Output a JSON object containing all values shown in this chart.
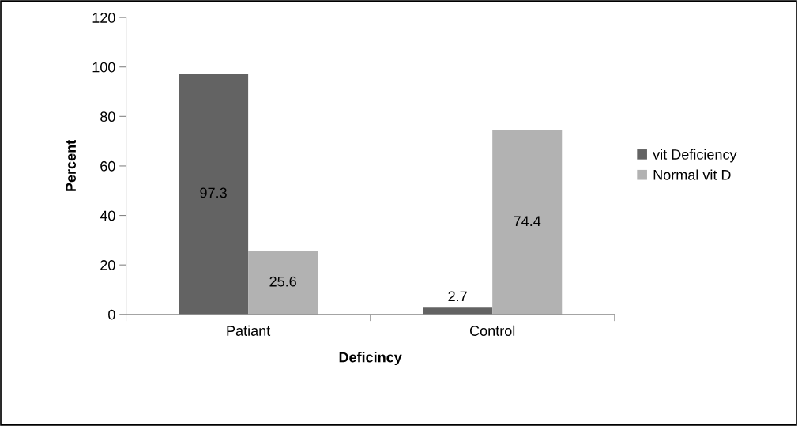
{
  "chart_data": {
    "type": "bar",
    "xlabel": "Deficincy",
    "ylabel": "Percent",
    "categories": [
      "Patiant",
      "Control"
    ],
    "series": [
      {
        "name": "vit Deficiency",
        "color": "#636363",
        "values": [
          97.3,
          2.7
        ]
      },
      {
        "name": "Normal vit D",
        "color": "#b2b2b2",
        "values": [
          25.6,
          74.4
        ]
      }
    ],
    "ylim": [
      0,
      120
    ],
    "yticks": [
      0,
      20,
      40,
      60,
      80,
      100,
      120
    ],
    "grid": false,
    "legend": "right",
    "data_labels": true
  }
}
